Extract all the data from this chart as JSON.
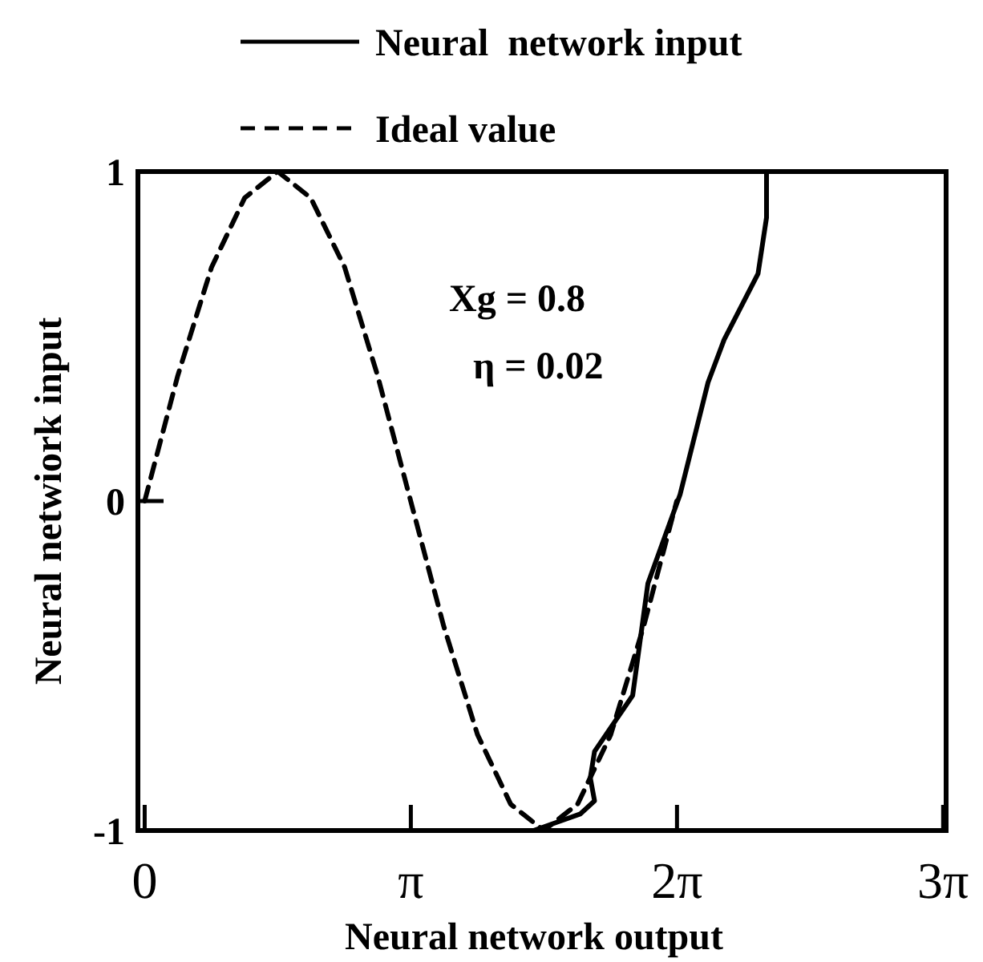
{
  "chart_data": {
    "type": "line",
    "xlabel": "Neural network output",
    "ylabel": "Neural netwiork input",
    "legend": "top",
    "grid": false,
    "xlim": [
      -0.08,
      9.46
    ],
    "ylim": [
      -1,
      1
    ],
    "xticks": [
      0,
      {
        "value": 3.1416,
        "label": "π"
      },
      {
        "value": 6.2832,
        "label": "2π"
      },
      {
        "value": 9.4248,
        "label": "3π"
      }
    ],
    "yticks": [
      -1,
      0,
      1
    ],
    "annotations": [
      "Xg = 0.8",
      "η = 0.02"
    ],
    "series": [
      {
        "name": "Neural  network input",
        "color": "#000000",
        "line_style": "solid",
        "x": [
          4.59,
          5.14,
          5.31,
          5.26,
          5.31,
          5.76,
          5.94,
          6.32,
          6.65,
          6.84,
          7.24,
          7.34,
          7.34
        ],
        "values": [
          -1,
          -0.95,
          -0.91,
          -0.84,
          -0.76,
          -0.59,
          -0.25,
          0.02,
          0.36,
          0.49,
          0.69,
          0.86,
          1
        ]
      },
      {
        "name": "Ideal value",
        "color": "#000000",
        "line_style": "dashed",
        "x": [
          0,
          0.39,
          0.79,
          1.18,
          1.57,
          1.96,
          2.36,
          2.75,
          3.14,
          3.53,
          3.93,
          4.32,
          4.71,
          5.11,
          5.5,
          5.89,
          6.28
        ],
        "values": [
          0,
          0.38,
          0.71,
          0.92,
          1,
          0.92,
          0.71,
          0.38,
          0,
          -0.38,
          -0.71,
          -0.92,
          -1,
          -0.92,
          -0.71,
          -0.38,
          0
        ]
      }
    ]
  }
}
